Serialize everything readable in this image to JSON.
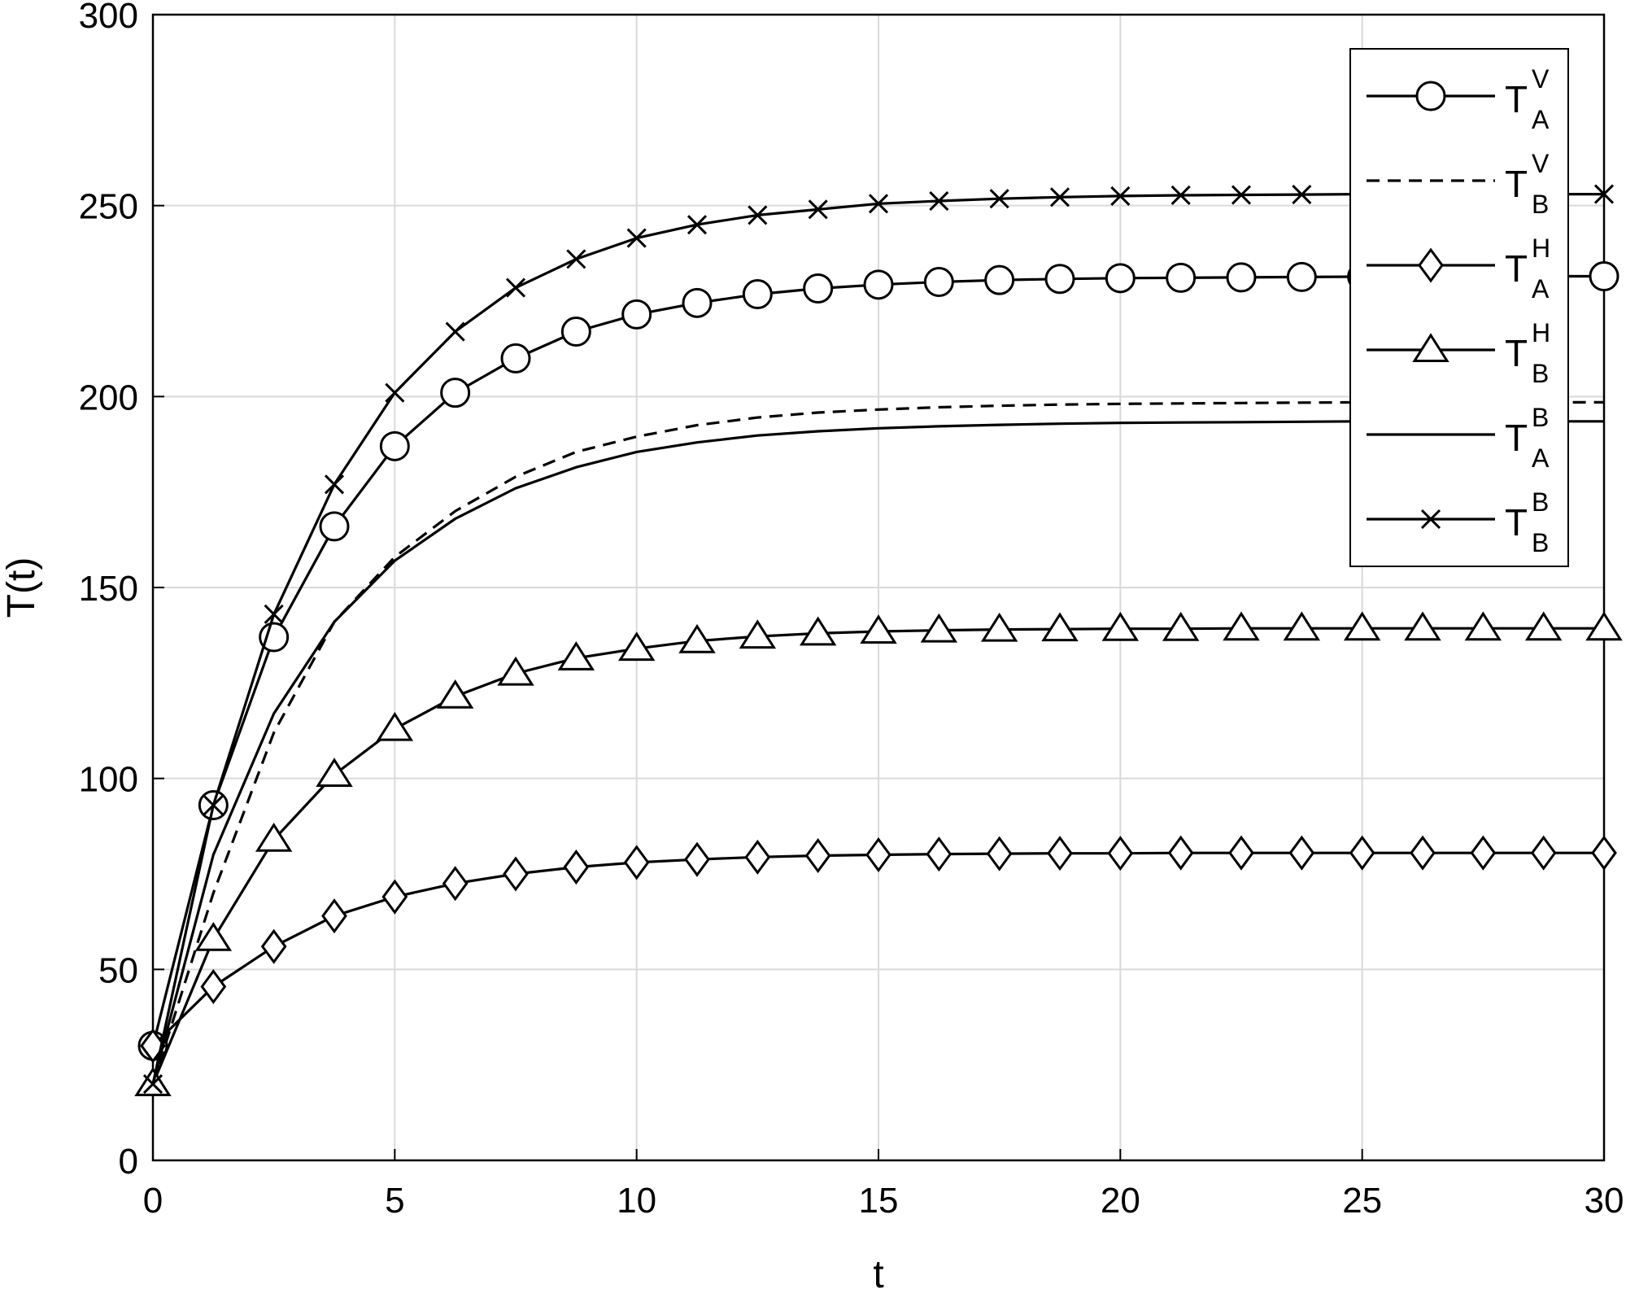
{
  "chart_data": {
    "type": "line",
    "title": "",
    "xlabel": "t",
    "ylabel": "T(t)",
    "xlim": [
      0,
      30
    ],
    "ylim": [
      0,
      300
    ],
    "xticks": [
      0,
      5,
      10,
      15,
      20,
      25,
      30
    ],
    "yticks": [
      0,
      50,
      100,
      150,
      200,
      250,
      300
    ],
    "grid": true,
    "legend_position": "top-right",
    "x": [
      0,
      1.25,
      2.5,
      3.75,
      5,
      6.25,
      7.5,
      8.75,
      10,
      11.25,
      12.5,
      13.75,
      15,
      16.25,
      17.5,
      18.75,
      20,
      21.25,
      22.5,
      23.75,
      25,
      26.25,
      27.5,
      28.75,
      30
    ],
    "series": [
      {
        "label_main": "T",
        "label_sup": "V",
        "label_sub": "A",
        "line_style": "solid",
        "marker": "circle",
        "values": [
          30,
          93,
          137,
          166,
          187,
          201,
          210,
          217,
          221.5,
          224.5,
          226.8,
          228.3,
          229.3,
          230,
          230.5,
          230.8,
          231,
          231.1,
          231.2,
          231.3,
          231.4,
          231.4,
          231.5,
          231.5,
          231.5
        ]
      },
      {
        "label_main": "T",
        "label_sup": "V",
        "label_sub": "B",
        "line_style": "dashed",
        "marker": "none",
        "values": [
          20,
          70,
          112,
          141,
          158,
          170,
          179,
          185.5,
          189.5,
          192.5,
          194.5,
          195.8,
          196.6,
          197.2,
          197.6,
          197.9,
          198.1,
          198.2,
          198.3,
          198.4,
          198.5,
          198.5,
          198.5,
          198.5,
          198.5
        ]
      },
      {
        "label_main": "T",
        "label_sup": "H",
        "label_sub": "A",
        "line_style": "solid",
        "marker": "diamond",
        "values": [
          30,
          45.5,
          56,
          64,
          69,
          72.5,
          75,
          76.8,
          78,
          78.8,
          79.4,
          79.8,
          80,
          80.2,
          80.3,
          80.4,
          80.4,
          80.5,
          80.5,
          80.5,
          80.5,
          80.5,
          80.5,
          80.5,
          80.5
        ]
      },
      {
        "label_main": "T",
        "label_sup": "H",
        "label_sub": "B",
        "line_style": "solid",
        "marker": "triangle",
        "values": [
          20,
          58,
          84,
          101,
          113,
          121.5,
          127.5,
          131.5,
          134,
          136,
          137.2,
          138,
          138.5,
          138.8,
          139,
          139.1,
          139.2,
          139.2,
          139.3,
          139.3,
          139.3,
          139.3,
          139.3,
          139.3,
          139.3
        ]
      },
      {
        "label_main": "T",
        "label_sup": "B",
        "label_sub": "A",
        "line_style": "solid",
        "marker": "none",
        "values": [
          20,
          80,
          117,
          141,
          157,
          168,
          176,
          181.5,
          185.5,
          188,
          189.8,
          190.9,
          191.7,
          192.2,
          192.6,
          192.9,
          193.1,
          193.2,
          193.3,
          193.4,
          193.5,
          193.5,
          193.5,
          193.5,
          193.5
        ]
      },
      {
        "label_main": "T",
        "label_sup": "B",
        "label_sub": "B",
        "line_style": "solid",
        "marker": "x",
        "values": [
          20,
          93,
          143,
          177,
          201,
          217,
          228.5,
          236,
          241.5,
          245,
          247.5,
          249,
          250.5,
          251.2,
          251.8,
          252.2,
          252.5,
          252.7,
          252.8,
          252.9,
          253,
          253,
          253,
          253,
          253
        ]
      }
    ]
  }
}
